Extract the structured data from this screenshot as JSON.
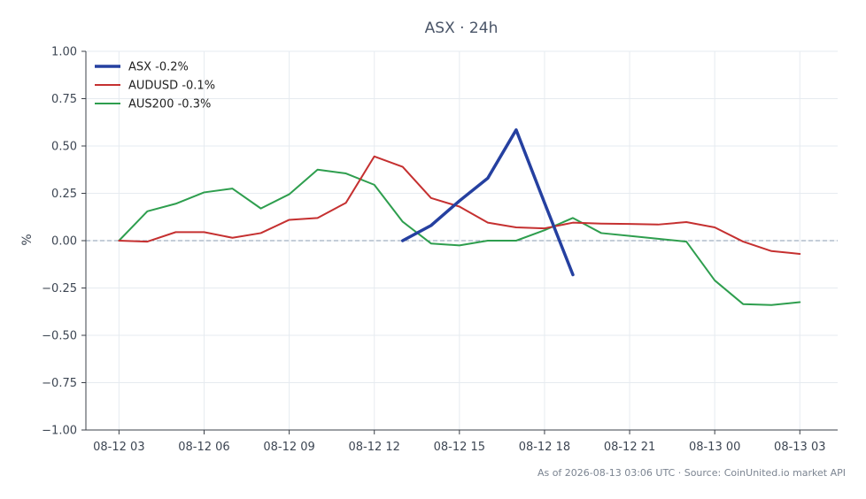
{
  "chart_data": {
    "type": "line",
    "title": "ASX · 24h",
    "xlabel": "",
    "ylabel": "%",
    "ylim": [
      -1.0,
      1.0
    ],
    "y_ticks": [
      "1.00",
      "0.75",
      "0.50",
      "0.25",
      "0.00",
      "−0.25",
      "−0.50",
      "−0.75",
      "−1.00"
    ],
    "x_tick_labels": [
      "08-12 03",
      "08-12 06",
      "08-12 09",
      "08-12 12",
      "08-12 15",
      "08-12 18",
      "08-12 21",
      "08-13 00",
      "08-13 03"
    ],
    "x_range": [
      "08-12 01:50",
      "08-13 04:20"
    ],
    "grid": true,
    "zero_line": true,
    "legend_position": "top-left",
    "series": [
      {
        "name": "ASX -0.2%",
        "color": "#2540a0",
        "x": [
          "08-12 13:00",
          "08-12 14:00",
          "08-12 15:00",
          "08-12 16:00",
          "08-12 17:00",
          "08-12 18:00",
          "08-12 19:00"
        ],
        "values": [
          0.0,
          0.08,
          0.21,
          0.33,
          0.585,
          0.2,
          -0.18
        ]
      },
      {
        "name": "AUDUSD -0.1%",
        "color": "#c53030",
        "x": [
          "08-12 03:00",
          "08-12 04:00",
          "08-12 05:00",
          "08-12 06:00",
          "08-12 07:00",
          "08-12 08:00",
          "08-12 09:00",
          "08-12 10:00",
          "08-12 11:00",
          "08-12 12:00",
          "08-12 13:00",
          "08-12 14:00",
          "08-12 15:00",
          "08-12 16:00",
          "08-12 17:00",
          "08-12 18:00",
          "08-12 19:00",
          "08-12 20:00",
          "08-12 21:00",
          "08-12 22:00",
          "08-12 23:00",
          "08-13 00:00",
          "08-13 01:00",
          "08-13 02:00",
          "08-13 03:00"
        ],
        "values": [
          0.0,
          -0.005,
          0.045,
          0.045,
          0.015,
          0.04,
          0.11,
          0.12,
          0.2,
          0.445,
          0.39,
          0.225,
          0.18,
          0.095,
          0.07,
          0.065,
          0.095,
          0.09,
          0.088,
          0.085,
          0.098,
          0.07,
          -0.005,
          -0.055,
          -0.07
        ]
      },
      {
        "name": "AUS200 -0.3%",
        "color": "#2e9e4e",
        "x": [
          "08-12 03:00",
          "08-12 04:00",
          "08-12 05:00",
          "08-12 06:00",
          "08-12 07:00",
          "08-12 08:00",
          "08-12 09:00",
          "08-12 10:00",
          "08-12 11:00",
          "08-12 12:00",
          "08-12 13:00",
          "08-12 14:00",
          "08-12 15:00",
          "08-12 16:00",
          "08-12 17:00",
          "08-12 18:00",
          "08-12 19:00",
          "08-12 20:00",
          "08-12 21:00",
          "08-12 22:00",
          "08-12 23:00",
          "08-13 00:00",
          "08-13 01:00",
          "08-13 02:00",
          "08-13 03:00"
        ],
        "values": [
          0.0,
          0.155,
          0.195,
          0.255,
          0.275,
          0.17,
          0.245,
          0.375,
          0.355,
          0.295,
          0.1,
          -0.015,
          -0.025,
          0.0,
          0.0,
          0.055,
          0.12,
          0.04,
          0.025,
          0.01,
          -0.005,
          -0.21,
          -0.335,
          -0.34,
          -0.325
        ]
      }
    ]
  },
  "footer": {
    "text": "As of 2026-08-13 03:06 UTC · Source: CoinUnited.io market API"
  }
}
